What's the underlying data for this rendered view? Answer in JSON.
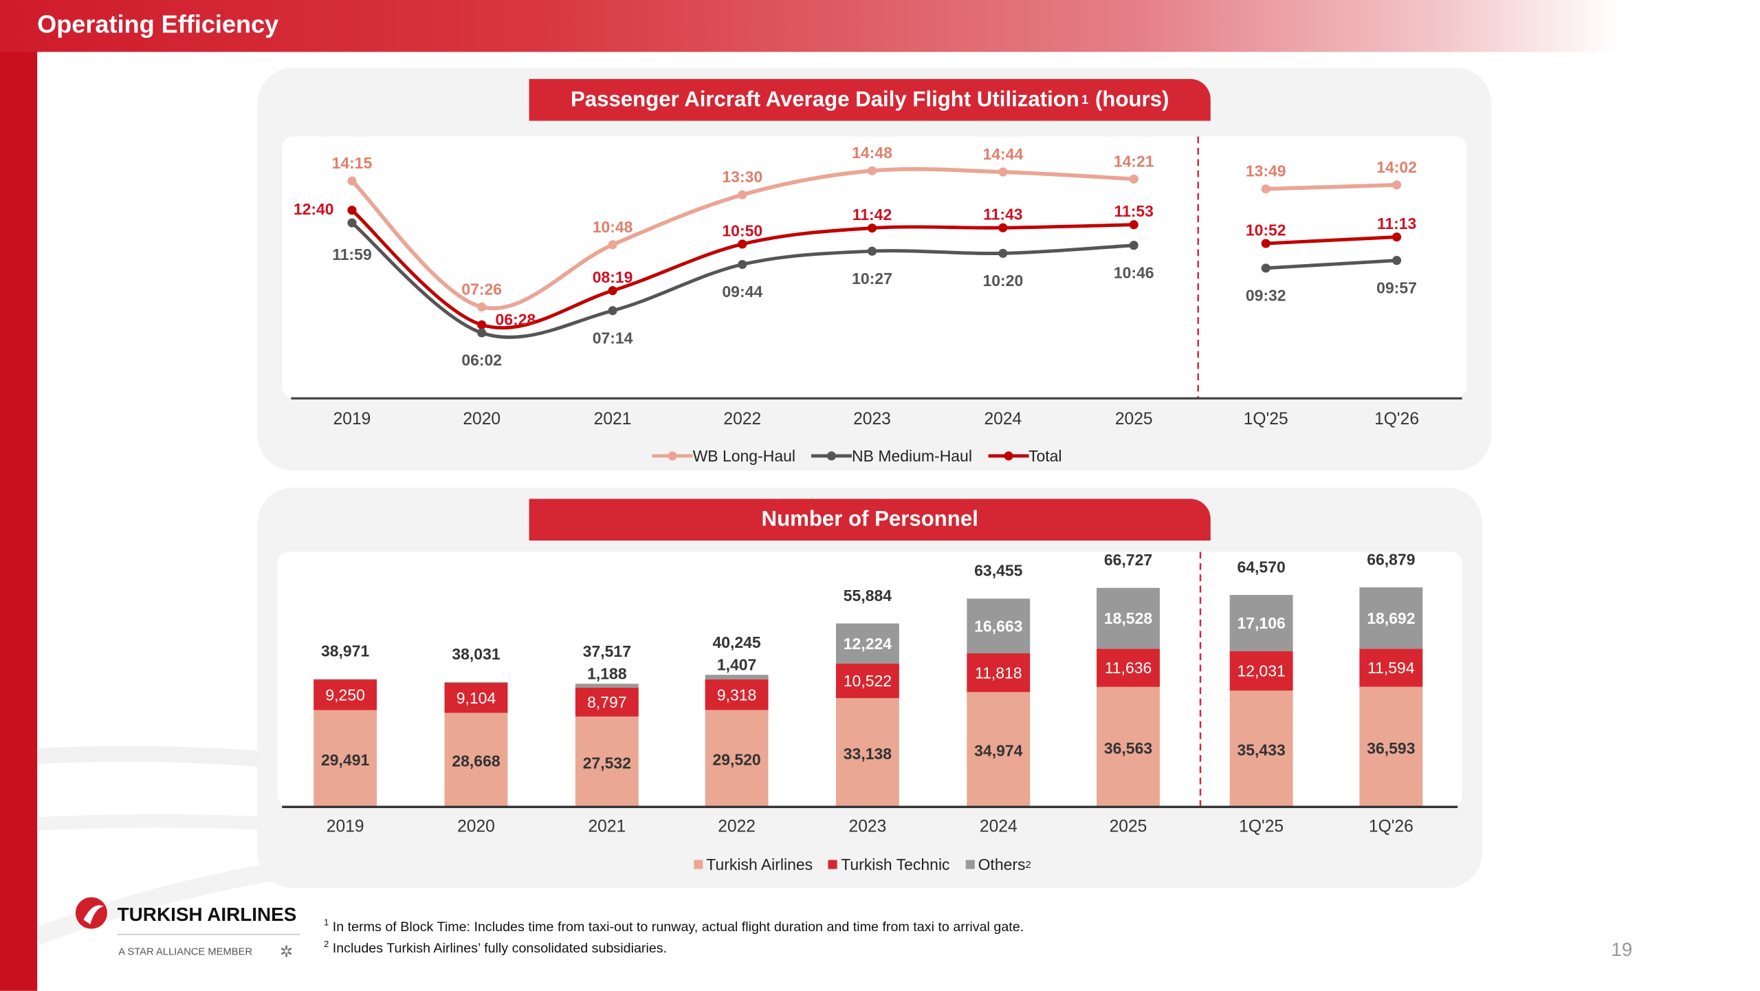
{
  "header": {
    "title": "Operating Efficiency"
  },
  "page_number": "19",
  "logo": {
    "brand": "TURKISH AIRLINES",
    "tagline": "A STAR ALLIANCE MEMBER"
  },
  "footnotes": [
    {
      "mark": "1",
      "text": "In terms of Block Time: Includes time from taxi-out to runway, actual flight duration and time from taxi to arrival gate."
    },
    {
      "mark": "2",
      "text": "Includes Turkish Airlines’ fully consolidated subsidiaries."
    }
  ],
  "colors": {
    "wb": "#eaa595",
    "nb": "#555555",
    "total": "#c00000",
    "ta": "#eaa793",
    "tt": "#d7262f",
    "others": "#999999",
    "accent": "#d52633"
  },
  "chart_data": [
    {
      "type": "line",
      "title": "Passenger Aircraft Average Daily Flight Utilization",
      "title_sup": "1",
      "title_suffix": "(hours)",
      "categories": [
        "2019",
        "2020",
        "2021",
        "2022",
        "2023",
        "2024",
        "2025",
        "1Q'25",
        "1Q'26"
      ],
      "segments": [
        [
          0,
          6
        ],
        [
          7,
          8
        ]
      ],
      "ylim_hours": [
        2.55,
        16.65
      ],
      "series": [
        {
          "name": "WB Long-Haul",
          "values": [
            "14:15",
            "07:26",
            "10:48",
            "13:30",
            "14:48",
            "14:44",
            "14:21",
            "13:49",
            "14:02"
          ]
        },
        {
          "name": "NB Medium-Haul",
          "values": [
            "11:59",
            "06:02",
            "07:14",
            "09:44",
            "10:27",
            "10:20",
            "10:46",
            "09:32",
            "09:57"
          ]
        },
        {
          "name": "Total",
          "values": [
            "12:40",
            "06:28",
            "08:19",
            "10:50",
            "11:42",
            "11:43",
            "11:53",
            "10:52",
            "11:13"
          ]
        }
      ],
      "legend": "bottom-center"
    },
    {
      "type": "bar",
      "stacked": true,
      "title": "Number of Personnel",
      "categories": [
        "2019",
        "2020",
        "2021",
        "2022",
        "2023",
        "2024",
        "2025",
        "1Q'25",
        "1Q'26"
      ],
      "ylim": [
        0,
        77700
      ],
      "series": [
        {
          "name": "Turkish Airlines",
          "values": [
            "29,491",
            "28,668",
            "27,532",
            "29,520",
            "33,138",
            "34,974",
            "36,563",
            "35,433",
            "36,593"
          ]
        },
        {
          "name": "Turkish Technic",
          "values": [
            "9,250",
            "9,104",
            "8,797",
            "9,318",
            "10,522",
            "11,818",
            "11,636",
            "12,031",
            "11,594"
          ]
        },
        {
          "name": "Others",
          "name_sup": "2",
          "values": [
            "230",
            "259",
            "1,188",
            "1,407",
            "12,224",
            "16,663",
            "18,528",
            "17,106",
            "18,692"
          ]
        }
      ],
      "totals": [
        "38,971",
        "38,031",
        "37,517",
        "40,245",
        "55,884",
        "63,455",
        "66,727",
        "64,570",
        "66,879"
      ],
      "legend": "bottom-center"
    }
  ]
}
